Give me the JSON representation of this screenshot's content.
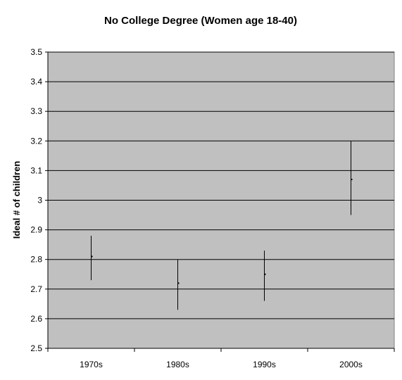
{
  "chart_data": {
    "type": "scatter",
    "title": "No College Degree (Women age 18-40)",
    "xlabel": "",
    "ylabel": "Ideal # of children",
    "categories": [
      "1970s",
      "1980s",
      "1990s",
      "2000s"
    ],
    "series": [
      {
        "values": [
          2.81,
          2.72,
          2.75,
          3.07
        ],
        "lower": [
          2.73,
          2.63,
          2.66,
          2.95
        ],
        "upper": [
          2.88,
          2.8,
          2.83,
          3.2
        ]
      }
    ],
    "ylim": [
      2.5,
      3.5
    ],
    "yticks": [
      "2.5",
      "2.6",
      "2.7",
      "2.8",
      "2.9",
      "3",
      "3.1",
      "3.2",
      "3.3",
      "3.4",
      "3.5"
    ],
    "grid": true,
    "colors": {
      "plot_background": "#c0c0c0",
      "gridline": "#000000",
      "marks": "#000000"
    }
  }
}
